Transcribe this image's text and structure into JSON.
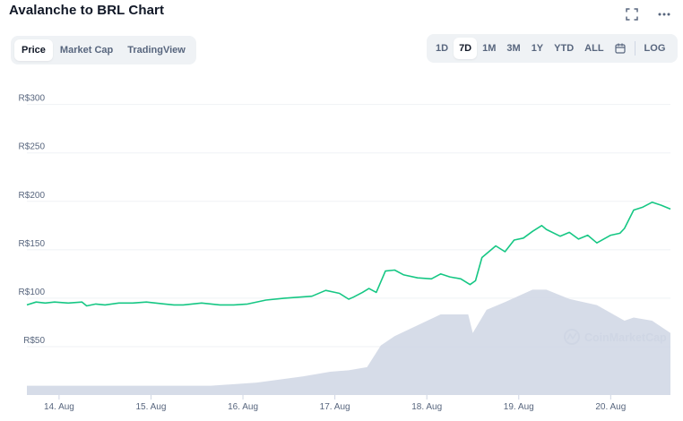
{
  "header": {
    "title": "Avalanche to BRL Chart"
  },
  "icons": {
    "fullscreen": "fullscreen-icon",
    "more": "more-horizontal-icon",
    "calendar": "calendar-icon"
  },
  "tabs": [
    {
      "label": "Price",
      "active": true
    },
    {
      "label": "Market Cap",
      "active": false
    },
    {
      "label": "TradingView",
      "active": false
    }
  ],
  "ranges": [
    {
      "label": "1D",
      "active": false
    },
    {
      "label": "7D",
      "active": true
    },
    {
      "label": "1M",
      "active": false
    },
    {
      "label": "3M",
      "active": false
    },
    {
      "label": "1Y",
      "active": false
    },
    {
      "label": "YTD",
      "active": false
    },
    {
      "label": "ALL",
      "active": false
    }
  ],
  "log_label": "LOG",
  "watermark": "CoinMarketCap",
  "colors": {
    "line": "#16c784",
    "volume": "#cfd6e4",
    "grid": "#eff2f5",
    "text": "#58667e"
  },
  "chart_data": {
    "type": "line",
    "y_ticks": [
      "R$300",
      "R$250",
      "R$200",
      "R$150",
      "R$100",
      "R$50"
    ],
    "y_tick_values": [
      300,
      250,
      200,
      150,
      100,
      50
    ],
    "ylim": [
      0,
      320
    ],
    "x_ticks": [
      "14. Aug",
      "15. Aug",
      "16. Aug",
      "17. Aug",
      "18. Aug",
      "19. Aug",
      "20. Aug"
    ],
    "x_tick_positions": [
      0.35,
      1.35,
      2.35,
      3.35,
      4.35,
      5.35,
      6.35
    ],
    "xlim": [
      0,
      7.0
    ],
    "series": [
      {
        "x": [
          0.0,
          0.1,
          0.2,
          0.3,
          0.45,
          0.6,
          0.65,
          0.75,
          0.85,
          1.0,
          1.15,
          1.3,
          1.5,
          1.6,
          1.7,
          1.9,
          2.1,
          2.25,
          2.4,
          2.6,
          2.8,
          2.95,
          3.1,
          3.25,
          3.35,
          3.4,
          3.5,
          3.55,
          3.65,
          3.72,
          3.8,
          3.9,
          4.0,
          4.1,
          4.25,
          4.4,
          4.5,
          4.6,
          4.72,
          4.82,
          4.88,
          4.95,
          5.1,
          5.2,
          5.3,
          5.4,
          5.5,
          5.6,
          5.65,
          5.8,
          5.9,
          6.0,
          6.1,
          6.2,
          6.35,
          6.45,
          6.5,
          6.6,
          6.7,
          6.8,
          6.9,
          7.0
        ],
        "values": [
          93,
          96,
          95,
          96,
          95,
          96,
          92,
          94,
          93,
          95,
          95,
          96,
          94,
          93,
          93,
          95,
          93,
          93,
          94,
          98,
          100,
          101,
          102,
          108,
          106,
          105,
          99,
          101,
          106,
          110,
          106,
          128,
          129,
          124,
          121,
          120,
          125,
          122,
          120,
          114,
          118,
          142,
          154,
          148,
          160,
          162,
          169,
          175,
          171,
          164,
          168,
          161,
          165,
          157,
          165,
          167,
          172,
          191,
          194,
          199,
          196,
          192
        ]
      }
    ],
    "volume": {
      "x": [
        0.0,
        0.5,
        1.0,
        1.5,
        2.0,
        2.5,
        3.0,
        3.3,
        3.5,
        3.7,
        3.85,
        4.0,
        4.5,
        4.8,
        4.85,
        5.0,
        5.2,
        5.5,
        5.65,
        5.9,
        6.2,
        6.5,
        6.6,
        6.8,
        7.0
      ],
      "values": [
        6,
        6,
        6,
        6,
        6,
        8,
        12,
        15,
        16,
        18,
        32,
        38,
        52,
        52,
        40,
        55,
        60,
        68,
        68,
        62,
        58,
        48,
        50,
        48,
        40
      ]
    }
  }
}
